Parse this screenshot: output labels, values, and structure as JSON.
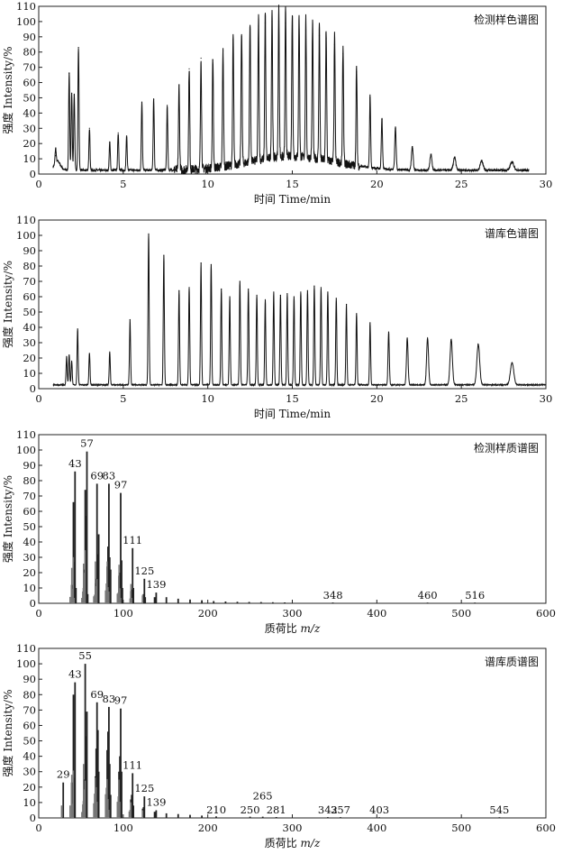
{
  "chart_data": [
    {
      "type": "line",
      "title": "检测样色谱图",
      "xlabel": "时间 Time/min",
      "ylabel": "强度 Intensity/%",
      "xlim": [
        0,
        30
      ],
      "ylim": [
        0,
        110
      ],
      "xticks": [
        0,
        5,
        10,
        15,
        20,
        25,
        30
      ],
      "yticks": [
        0,
        10,
        20,
        30,
        40,
        50,
        60,
        70,
        80,
        90,
        100,
        110
      ],
      "peaks": [
        {
          "x": 1.0,
          "y": 12
        },
        {
          "x": 1.8,
          "y": 66
        },
        {
          "x": 1.95,
          "y": 53
        },
        {
          "x": 2.1,
          "y": 52
        },
        {
          "x": 2.35,
          "y": 83
        },
        {
          "x": 3.0,
          "y": 30
        },
        {
          "x": 4.2,
          "y": 21
        },
        {
          "x": 4.7,
          "y": 27
        },
        {
          "x": 5.2,
          "y": 25
        },
        {
          "x": 6.1,
          "y": 47
        },
        {
          "x": 6.8,
          "y": 49
        },
        {
          "x": 7.6,
          "y": 45
        },
        {
          "x": 8.3,
          "y": 58
        },
        {
          "x": 8.9,
          "y": 69
        },
        {
          "x": 9.6,
          "y": 76
        },
        {
          "x": 10.3,
          "y": 75
        },
        {
          "x": 10.9,
          "y": 81
        },
        {
          "x": 11.5,
          "y": 88
        },
        {
          "x": 12.0,
          "y": 90
        },
        {
          "x": 12.5,
          "y": 95
        },
        {
          "x": 13.0,
          "y": 97
        },
        {
          "x": 13.4,
          "y": 99
        },
        {
          "x": 13.8,
          "y": 100
        },
        {
          "x": 14.2,
          "y": 100
        },
        {
          "x": 14.6,
          "y": 99
        },
        {
          "x": 15.0,
          "y": 97
        },
        {
          "x": 15.4,
          "y": 95
        },
        {
          "x": 15.8,
          "y": 94
        },
        {
          "x": 16.2,
          "y": 92
        },
        {
          "x": 16.6,
          "y": 91
        },
        {
          "x": 17.0,
          "y": 89
        },
        {
          "x": 17.5,
          "y": 85
        },
        {
          "x": 18.0,
          "y": 79
        },
        {
          "x": 18.8,
          "y": 67
        },
        {
          "x": 19.6,
          "y": 50
        },
        {
          "x": 20.3,
          "y": 36
        },
        {
          "x": 21.1,
          "y": 30
        },
        {
          "x": 22.1,
          "y": 18
        },
        {
          "x": 23.2,
          "y": 13
        },
        {
          "x": 24.6,
          "y": 11
        },
        {
          "x": 26.2,
          "y": 9
        },
        {
          "x": 28.0,
          "y": 8
        }
      ],
      "x_end": 29.0
    },
    {
      "type": "line",
      "title": "谱库色谱图",
      "xlabel": "时间 Time/min",
      "ylabel": "强度 Intensity/%",
      "xlim": [
        0,
        30
      ],
      "ylim": [
        0,
        110
      ],
      "xticks": [
        0,
        5,
        10,
        15,
        20,
        25,
        30
      ],
      "yticks": [
        0,
        10,
        20,
        30,
        40,
        50,
        60,
        70,
        80,
        90,
        100,
        110
      ],
      "peaks": [
        {
          "x": 1.65,
          "y": 21
        },
        {
          "x": 1.8,
          "y": 22
        },
        {
          "x": 1.95,
          "y": 18
        },
        {
          "x": 2.3,
          "y": 39
        },
        {
          "x": 3.0,
          "y": 23
        },
        {
          "x": 4.2,
          "y": 24
        },
        {
          "x": 5.4,
          "y": 45
        },
        {
          "x": 6.5,
          "y": 101
        },
        {
          "x": 7.4,
          "y": 87
        },
        {
          "x": 8.3,
          "y": 64
        },
        {
          "x": 8.9,
          "y": 66
        },
        {
          "x": 9.6,
          "y": 82
        },
        {
          "x": 10.2,
          "y": 81
        },
        {
          "x": 10.8,
          "y": 65
        },
        {
          "x": 11.3,
          "y": 60
        },
        {
          "x": 11.9,
          "y": 70
        },
        {
          "x": 12.4,
          "y": 65
        },
        {
          "x": 12.9,
          "y": 61
        },
        {
          "x": 13.4,
          "y": 58
        },
        {
          "x": 13.9,
          "y": 63
        },
        {
          "x": 14.3,
          "y": 61
        },
        {
          "x": 14.7,
          "y": 62
        },
        {
          "x": 15.1,
          "y": 60
        },
        {
          "x": 15.5,
          "y": 63
        },
        {
          "x": 15.9,
          "y": 64
        },
        {
          "x": 16.3,
          "y": 67
        },
        {
          "x": 16.7,
          "y": 66
        },
        {
          "x": 17.1,
          "y": 63
        },
        {
          "x": 17.6,
          "y": 59
        },
        {
          "x": 18.2,
          "y": 55
        },
        {
          "x": 18.8,
          "y": 49
        },
        {
          "x": 19.6,
          "y": 43
        },
        {
          "x": 20.7,
          "y": 37
        },
        {
          "x": 21.8,
          "y": 33
        },
        {
          "x": 23.0,
          "y": 33
        },
        {
          "x": 24.4,
          "y": 32
        },
        {
          "x": 26.0,
          "y": 29
        },
        {
          "x": 28.0,
          "y": 17
        }
      ],
      "x_end": 30.0
    },
    {
      "type": "bar",
      "title": "检测样质谱图",
      "xlabel": "质荷比 m/z",
      "ylabel": "强度 Intensity/%",
      "xlim": [
        0,
        600
      ],
      "ylim": [
        0,
        110
      ],
      "xticks": [
        0,
        100,
        200,
        300,
        400,
        500,
        600
      ],
      "yticks": [
        0,
        10,
        20,
        30,
        40,
        50,
        60,
        70,
        80,
        90,
        100,
        110
      ],
      "bars": [
        {
          "x": 39,
          "y": 12
        },
        {
          "x": 41,
          "y": 66
        },
        {
          "x": 42,
          "y": 27
        },
        {
          "x": 43,
          "y": 86
        },
        {
          "x": 44,
          "y": 10
        },
        {
          "x": 53,
          "y": 10
        },
        {
          "x": 54,
          "y": 22
        },
        {
          "x": 55,
          "y": 74
        },
        {
          "x": 56,
          "y": 57
        },
        {
          "x": 57,
          "y": 99
        },
        {
          "x": 58,
          "y": 6
        },
        {
          "x": 67,
          "y": 13
        },
        {
          "x": 68,
          "y": 16
        },
        {
          "x": 69,
          "y": 78
        },
        {
          "x": 70,
          "y": 32
        },
        {
          "x": 71,
          "y": 45
        },
        {
          "x": 81,
          "y": 24
        },
        {
          "x": 82,
          "y": 37
        },
        {
          "x": 83,
          "y": 78
        },
        {
          "x": 84,
          "y": 30
        },
        {
          "x": 85,
          "y": 22
        },
        {
          "x": 95,
          "y": 18
        },
        {
          "x": 96,
          "y": 20
        },
        {
          "x": 97,
          "y": 72
        },
        {
          "x": 98,
          "y": 28
        },
        {
          "x": 99,
          "y": 10
        },
        {
          "x": 109,
          "y": 8
        },
        {
          "x": 110,
          "y": 9
        },
        {
          "x": 111,
          "y": 36
        },
        {
          "x": 112,
          "y": 10
        },
        {
          "x": 123,
          "y": 5
        },
        {
          "x": 124,
          "y": 6
        },
        {
          "x": 125,
          "y": 16
        },
        {
          "x": 126,
          "y": 4
        },
        {
          "x": 137,
          "y": 4
        },
        {
          "x": 139,
          "y": 7
        },
        {
          "x": 151,
          "y": 4
        },
        {
          "x": 165,
          "y": 3
        },
        {
          "x": 179,
          "y": 2.5
        },
        {
          "x": 193,
          "y": 2
        },
        {
          "x": 207,
          "y": 1.5
        },
        {
          "x": 221,
          "y": 1.2
        },
        {
          "x": 235,
          "y": 1
        },
        {
          "x": 249,
          "y": 0.9
        },
        {
          "x": 263,
          "y": 0.8
        },
        {
          "x": 277,
          "y": 0.7
        },
        {
          "x": 291,
          "y": 0.6
        },
        {
          "x": 348,
          "y": 0.5
        },
        {
          "x": 460,
          "y": 0.4
        },
        {
          "x": 516,
          "y": 0.3
        }
      ],
      "peak_labels": [
        {
          "x": 43,
          "y": 86,
          "text": "43"
        },
        {
          "x": 57,
          "y": 99,
          "text": "57"
        },
        {
          "x": 69,
          "y": 78,
          "text": "69"
        },
        {
          "x": 83,
          "y": 78,
          "text": "83"
        },
        {
          "x": 97,
          "y": 72,
          "text": "97"
        },
        {
          "x": 111,
          "y": 36,
          "text": "111"
        },
        {
          "x": 125,
          "y": 16,
          "text": "125"
        },
        {
          "x": 139,
          "y": 7,
          "text": "139"
        },
        {
          "x": 348,
          "y": 0.5,
          "text": "348"
        },
        {
          "x": 460,
          "y": 0.4,
          "text": "460"
        },
        {
          "x": 516,
          "y": 0.3,
          "text": "516"
        }
      ]
    },
    {
      "type": "bar",
      "title": "谱库质谱图",
      "xlabel": "质荷比 m/z",
      "ylabel": "强度 Intensity/%",
      "xlim": [
        0,
        600
      ],
      "ylim": [
        0,
        110
      ],
      "xticks": [
        0,
        100,
        200,
        300,
        400,
        500,
        600
      ],
      "yticks": [
        0,
        10,
        20,
        30,
        40,
        50,
        60,
        70,
        80,
        90,
        100,
        110
      ],
      "bars": [
        {
          "x": 29,
          "y": 23
        },
        {
          "x": 39,
          "y": 23
        },
        {
          "x": 41,
          "y": 80
        },
        {
          "x": 42,
          "y": 26
        },
        {
          "x": 43,
          "y": 88
        },
        {
          "x": 53,
          "y": 11
        },
        {
          "x": 54,
          "y": 25
        },
        {
          "x": 55,
          "y": 100
        },
        {
          "x": 56,
          "y": 53
        },
        {
          "x": 57,
          "y": 69
        },
        {
          "x": 67,
          "y": 27
        },
        {
          "x": 68,
          "y": 45
        },
        {
          "x": 69,
          "y": 75
        },
        {
          "x": 70,
          "y": 57
        },
        {
          "x": 71,
          "y": 30
        },
        {
          "x": 81,
          "y": 44
        },
        {
          "x": 82,
          "y": 56
        },
        {
          "x": 83,
          "y": 72
        },
        {
          "x": 84,
          "y": 35
        },
        {
          "x": 85,
          "y": 15
        },
        {
          "x": 95,
          "y": 30
        },
        {
          "x": 96,
          "y": 40
        },
        {
          "x": 97,
          "y": 71
        },
        {
          "x": 98,
          "y": 30
        },
        {
          "x": 109,
          "y": 12
        },
        {
          "x": 110,
          "y": 15
        },
        {
          "x": 111,
          "y": 29
        },
        {
          "x": 112,
          "y": 8
        },
        {
          "x": 123,
          "y": 6
        },
        {
          "x": 124,
          "y": 7
        },
        {
          "x": 125,
          "y": 14
        },
        {
          "x": 137,
          "y": 4
        },
        {
          "x": 139,
          "y": 5
        },
        {
          "x": 151,
          "y": 3
        },
        {
          "x": 165,
          "y": 2.5
        },
        {
          "x": 179,
          "y": 2
        },
        {
          "x": 193,
          "y": 1.5
        },
        {
          "x": 210,
          "y": 1
        },
        {
          "x": 250,
          "y": 0.8
        },
        {
          "x": 265,
          "y": 0.8
        },
        {
          "x": 281,
          "y": 0.6
        },
        {
          "x": 342,
          "y": 0.5
        },
        {
          "x": 357,
          "y": 0.5
        },
        {
          "x": 403,
          "y": 0.4
        },
        {
          "x": 545,
          "y": 0.3
        }
      ],
      "peak_labels": [
        {
          "x": 29,
          "y": 23,
          "text": "29"
        },
        {
          "x": 43,
          "y": 88,
          "text": "43"
        },
        {
          "x": 55,
          "y": 100,
          "text": "55"
        },
        {
          "x": 69,
          "y": 75,
          "text": "69"
        },
        {
          "x": 83,
          "y": 72,
          "text": "83"
        },
        {
          "x": 97,
          "y": 71,
          "text": "97"
        },
        {
          "x": 111,
          "y": 29,
          "text": "111"
        },
        {
          "x": 125,
          "y": 14,
          "text": "125"
        },
        {
          "x": 139,
          "y": 5,
          "text": "139"
        },
        {
          "x": 210,
          "y": 1,
          "text": "210"
        },
        {
          "x": 250,
          "y": 0.8,
          "text": "250"
        },
        {
          "x": 265,
          "y": 9,
          "text": "265"
        },
        {
          "x": 281,
          "y": 0.6,
          "text": "281"
        },
        {
          "x": 342,
          "y": 0.5,
          "text": "342"
        },
        {
          "x": 357,
          "y": 0.5,
          "text": "357"
        },
        {
          "x": 403,
          "y": 0.4,
          "text": "403"
        },
        {
          "x": 545,
          "y": 0.3,
          "text": "545"
        }
      ]
    }
  ]
}
